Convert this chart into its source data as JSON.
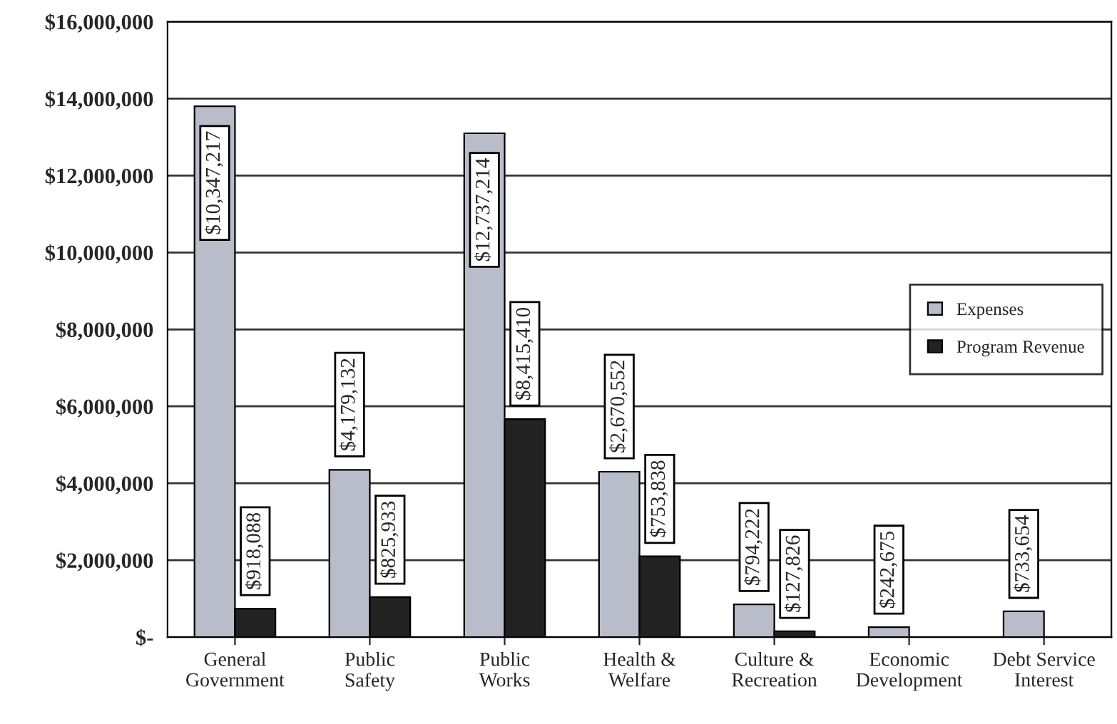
{
  "chart_data": {
    "type": "bar",
    "categories": [
      "General Government",
      "Public Safety",
      "Public Works",
      "Health & Welfare",
      "Culture & Recreation",
      "Economic Development",
      "Debt Service Interest"
    ],
    "series": [
      {
        "name": "Expenses",
        "color": "#b9bdc9",
        "values": [
          13800000,
          4350000,
          13100000,
          4300000,
          850000,
          260000,
          670000
        ]
      },
      {
        "name": "Program Revenue",
        "color": "#222222",
        "values": [
          740000,
          1040000,
          5670000,
          2100000,
          150000,
          null,
          null
        ]
      }
    ],
    "annotations": [
      "$10,347,217",
      "$918,088",
      "$4,179,132",
      "$825,933",
      "$12,737,214",
      "$8,415,410",
      "$2,670,552",
      "$753,838",
      "$794,222",
      "$127,826",
      "$242,675",
      "$733,654"
    ],
    "ylim": [
      0,
      16000000
    ],
    "yticks": [
      {
        "value": 0,
        "label": "$-"
      },
      {
        "value": 2000000,
        "label": "$2,000,000"
      },
      {
        "value": 4000000,
        "label": "$4,000,000"
      },
      {
        "value": 6000000,
        "label": "$6,000,000"
      },
      {
        "value": 8000000,
        "label": "$8,000,000"
      },
      {
        "value": 10000000,
        "label": "$10,000,000"
      },
      {
        "value": 12000000,
        "label": "$12,000,000"
      },
      {
        "value": 14000000,
        "label": "$14,000,000"
      },
      {
        "value": 16000000,
        "label": "$16,000,000"
      }
    ],
    "grid": "y",
    "legend": "right"
  }
}
